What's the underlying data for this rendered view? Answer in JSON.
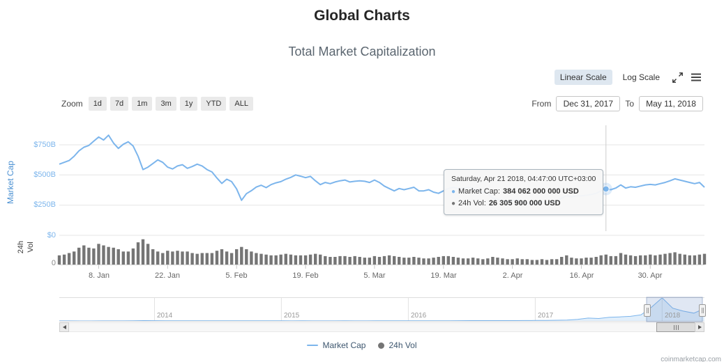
{
  "page": {
    "title": "Global Charts",
    "subtitle": "Total Market Capitalization",
    "watermark": "coinmarketcap.com"
  },
  "colors": {
    "market_cap": "#7CB5EC",
    "volume": "#757575",
    "selected_button_bg": "#DEE7F0",
    "axis_label_blue": "#7CB5EC",
    "market_cap_axis_title": "#4A90D2"
  },
  "scale_controls": {
    "linear_label": "Linear Scale",
    "log_label": "Log Scale"
  },
  "zoom_controls": {
    "label": "Zoom",
    "buttons": [
      "1d",
      "7d",
      "1m",
      "3m",
      "1y",
      "YTD",
      "ALL"
    ]
  },
  "range_inputs": {
    "from_label": "From",
    "from_value": "Dec 31, 2017",
    "to_label": "To",
    "to_value": "May 11, 2018"
  },
  "axes": {
    "market_cap_title": "Market Cap",
    "volume_title": "24h Vol",
    "y_labels": [
      "$750B",
      "$500B",
      "$250B",
      "$0"
    ],
    "volume_zero_label": "0",
    "x_labels": [
      "8. Jan",
      "22. Jan",
      "5. Feb",
      "19. Feb",
      "5. Mar",
      "19. Mar",
      "2. Apr",
      "16. Apr",
      "30. Apr"
    ],
    "navigator_labels": [
      "2014",
      "2015",
      "2016",
      "2017",
      "2018"
    ]
  },
  "tooltip": {
    "header": "Saturday, Apr 21 2018, 04:47:00 UTC+03:00",
    "rows": [
      {
        "label": "Market Cap:",
        "value": "384 062 000 000 USD",
        "color": "#7CB5EC"
      },
      {
        "label": "24h Vol:",
        "value": "26 305 900 000 USD",
        "color": "#757575"
      }
    ]
  },
  "legend": [
    {
      "label": "Market Cap",
      "type": "line",
      "color": "#7CB5EC"
    },
    {
      "label": "24h Vol",
      "type": "marker",
      "color": "#757575"
    }
  ],
  "chart_data": {
    "type": "line+bar",
    "title": "Total Market Capitalization",
    "x_unit": "day",
    "x_start": "Dec 31, 2017",
    "x_end": "May 11, 2018",
    "x_tick_labels": [
      "8. Jan",
      "22. Jan",
      "5. Feb",
      "19. Feb",
      "5. Mar",
      "19. Mar",
      "2. Apr",
      "16. Apr",
      "30. Apr"
    ],
    "y_tick_labels": [
      "$750B",
      "$500B",
      "$250B",
      "$0"
    ],
    "ylim_billions": [
      0,
      880
    ],
    "series": [
      {
        "name": "Market Cap",
        "type": "line",
        "color": "#7CB5EC",
        "unit": "USD billions",
        "values": [
          590,
          605,
          620,
          655,
          700,
          730,
          745,
          780,
          815,
          790,
          830,
          765,
          720,
          755,
          775,
          740,
          655,
          545,
          565,
          595,
          625,
          605,
          565,
          550,
          575,
          585,
          555,
          570,
          590,
          575,
          545,
          525,
          475,
          430,
          465,
          445,
          385,
          290,
          345,
          370,
          400,
          415,
          395,
          420,
          435,
          445,
          465,
          480,
          500,
          490,
          478,
          488,
          452,
          420,
          438,
          428,
          442,
          452,
          458,
          442,
          448,
          452,
          448,
          438,
          458,
          438,
          408,
          388,
          368,
          388,
          378,
          388,
          398,
          368,
          368,
          378,
          358,
          348,
          368,
          388,
          398,
          388,
          388,
          398,
          388,
          368,
          358,
          348,
          308,
          298,
          288,
          278,
          288,
          298,
          278,
          268,
          258,
          268,
          278,
          268,
          278,
          282,
          308,
          328,
          318,
          328,
          328,
          332,
          338,
          348,
          368,
          384,
          378,
          392,
          418,
          392,
          402,
          398,
          408,
          418,
          422,
          418,
          428,
          438,
          452,
          468,
          458,
          448,
          438,
          428,
          438,
          398
        ]
      },
      {
        "name": "24h Vol",
        "type": "bar",
        "color": "#757575",
        "unit": "USD billions",
        "values": [
          24,
          26,
          30,
          34,
          44,
          50,
          44,
          42,
          54,
          50,
          46,
          44,
          40,
          34,
          34,
          42,
          58,
          66,
          54,
          40,
          34,
          30,
          36,
          34,
          36,
          34,
          34,
          30,
          28,
          30,
          30,
          30,
          36,
          40,
          34,
          30,
          40,
          46,
          40,
          34,
          30,
          28,
          26,
          24,
          24,
          26,
          28,
          26,
          24,
          24,
          24,
          26,
          28,
          26,
          22,
          20,
          20,
          22,
          22,
          20,
          22,
          20,
          18,
          18,
          22,
          20,
          22,
          24,
          22,
          20,
          18,
          18,
          20,
          18,
          16,
          16,
          18,
          20,
          22,
          22,
          20,
          18,
          16,
          16,
          18,
          16,
          14,
          16,
          20,
          18,
          16,
          14,
          14,
          16,
          14,
          14,
          12,
          12,
          14,
          12,
          14,
          14,
          20,
          24,
          18,
          16,
          16,
          18,
          18,
          20,
          24,
          26,
          22,
          22,
          30,
          26,
          24,
          22,
          24,
          24,
          26,
          24,
          26,
          28,
          30,
          32,
          28,
          26,
          24,
          24,
          26,
          28
        ]
      }
    ],
    "navigator": {
      "type": "area",
      "x_labels": [
        "2014",
        "2015",
        "2016",
        "2017",
        "2018"
      ],
      "monthly_values_billions_from_apr_2013": [
        1.6,
        1.3,
        1.1,
        1,
        1.3,
        1.4,
        1.5,
        4,
        12,
        10,
        8,
        7,
        6.5,
        6.3,
        7.5,
        6.5,
        5.5,
        5,
        4.5,
        5,
        4.5,
        3.8,
        3.5,
        3.8,
        3.5,
        3.4,
        3.6,
        3.9,
        3.4,
        3.5,
        3.8,
        4.8,
        6.5,
        5.8,
        6.2,
        6.8,
        7,
        8,
        10.5,
        11,
        11,
        11.5,
        12,
        12.5,
        14,
        17,
        19,
        24,
        29,
        55,
        100,
        85,
        125,
        140,
        160,
        210,
        480,
        800,
        440,
        340,
        270,
        430
      ],
      "selected_range": [
        "Dec 31, 2017",
        "May 11, 2018"
      ]
    },
    "highlight": {
      "day_index": 111,
      "date": "Saturday, Apr 21 2018, 04:47:00 UTC+03:00",
      "market_cap_usd": 384062000000,
      "volume_24h_usd": 26305900000
    }
  }
}
